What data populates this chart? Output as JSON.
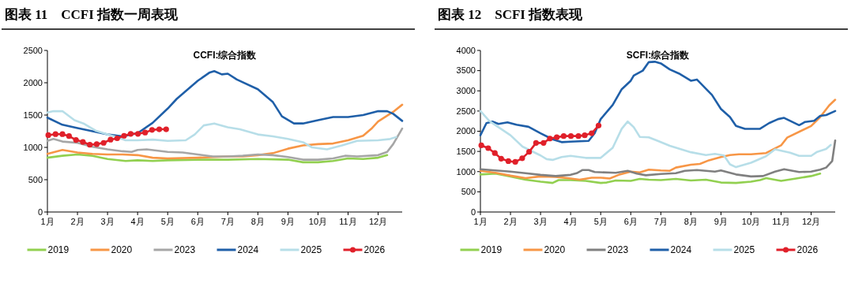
{
  "chart_data": [
    {
      "type": "line",
      "title": "图表 11　CCFI 指数一周表现",
      "subtitle": "CCFI:综合指数",
      "xlim": [
        1,
        12.8
      ],
      "xticks": [
        {
          "value": 1,
          "label": "1月"
        },
        {
          "value": 2,
          "label": "2月"
        },
        {
          "value": 3,
          "label": "3月"
        },
        {
          "value": 4,
          "label": "4月"
        },
        {
          "value": 5,
          "label": "5月"
        },
        {
          "value": 6,
          "label": "6月"
        },
        {
          "value": 7,
          "label": "7月"
        },
        {
          "value": 8,
          "label": "8月"
        },
        {
          "value": 9,
          "label": "9月"
        },
        {
          "value": 10,
          "label": "10月"
        },
        {
          "value": 11,
          "label": "11月"
        },
        {
          "value": 12,
          "label": "12月"
        }
      ],
      "ylim": [
        0,
        2500
      ],
      "yticks": [
        0,
        500,
        1000,
        1500,
        2000,
        2500
      ],
      "grid": false,
      "legend": "bottom",
      "series": [
        {
          "name": "2019",
          "color": "#92d050",
          "x": [
            1,
            1.5,
            2,
            2.5,
            3,
            3.6,
            4,
            4.5,
            5,
            6,
            7,
            8,
            9,
            9.5,
            10,
            10.5,
            11,
            11.5,
            12,
            12.3
          ],
          "values": [
            840,
            870,
            890,
            870,
            820,
            790,
            800,
            790,
            800,
            810,
            810,
            820,
            810,
            770,
            770,
            790,
            830,
            820,
            840,
            880
          ]
        },
        {
          "name": "2020",
          "color": "#f79646",
          "x": [
            1,
            1.5,
            2,
            2.5,
            3,
            3.5,
            4,
            4.5,
            5,
            6,
            7,
            7.5,
            8,
            8.5,
            9,
            9.5,
            10,
            10.5,
            11,
            11.5,
            11.8,
            12,
            12.5,
            12.8
          ],
          "values": [
            900,
            960,
            920,
            900,
            890,
            890,
            880,
            840,
            830,
            840,
            860,
            860,
            880,
            910,
            980,
            1030,
            1050,
            1060,
            1110,
            1180,
            1300,
            1400,
            1550,
            1660
          ]
        },
        {
          "name": "2023",
          "color": "#a6a6a6",
          "x": [
            1,
            1.2,
            1.5,
            2,
            2.5,
            3,
            3.5,
            3.8,
            4,
            4.3,
            5,
            5.5,
            6,
            6.5,
            7,
            7.5,
            8,
            8.5,
            9,
            9.5,
            10,
            10.5,
            10.9,
            11.3,
            12,
            12.3,
            12.5,
            12.8
          ],
          "values": [
            1100,
            1130,
            1090,
            1070,
            1010,
            970,
            940,
            930,
            960,
            970,
            930,
            920,
            890,
            860,
            860,
            870,
            890,
            880,
            850,
            810,
            810,
            830,
            870,
            860,
            880,
            930,
            1050,
            1290
          ]
        },
        {
          "name": "2024",
          "color": "#1f5fa8",
          "x": [
            1,
            1.5,
            2,
            2.5,
            3,
            3.5,
            4,
            4.5,
            5,
            5.3,
            6,
            6.4,
            6.55,
            6.8,
            7,
            7.3,
            8,
            8.5,
            8.8,
            9.2,
            9.5,
            10,
            10.5,
            10.8,
            11,
            11.5,
            12,
            12.3,
            12.5,
            12.8
          ],
          "values": [
            1460,
            1350,
            1300,
            1250,
            1200,
            1170,
            1220,
            1380,
            1600,
            1750,
            2030,
            2160,
            2180,
            2130,
            2140,
            2050,
            1900,
            1700,
            1480,
            1370,
            1370,
            1420,
            1470,
            1470,
            1470,
            1500,
            1560,
            1560,
            1520,
            1410
          ]
        },
        {
          "name": "2025",
          "color": "#b7dee8",
          "x": [
            1,
            1.2,
            1.5,
            1.9,
            2.2,
            2.6,
            3,
            3.3,
            3.6,
            4,
            4.5,
            5,
            5.6,
            5.9,
            6.2,
            6.55,
            7,
            7.4,
            8,
            8.5,
            9,
            9.5,
            9.8,
            10.3,
            10.8,
            11.3,
            12,
            12.4,
            12.6
          ],
          "values": [
            1540,
            1560,
            1560,
            1420,
            1370,
            1260,
            1200,
            1160,
            1110,
            1110,
            1120,
            1100,
            1110,
            1200,
            1340,
            1370,
            1310,
            1280,
            1200,
            1170,
            1130,
            1080,
            1000,
            970,
            1030,
            1100,
            1110,
            1130,
            1160
          ]
        },
        {
          "name": "2026",
          "color": "#e0202a",
          "marker": "circle",
          "x": [
            1.03,
            1.27,
            1.5,
            1.72,
            1.95,
            2.18,
            2.41,
            2.64,
            2.87,
            3.1,
            3.32,
            3.55,
            3.77,
            4.01,
            4.25,
            4.48,
            4.72,
            4.95
          ],
          "values": [
            1190,
            1205,
            1205,
            1175,
            1115,
            1085,
            1040,
            1050,
            1070,
            1120,
            1140,
            1180,
            1210,
            1210,
            1230,
            1270,
            1280,
            1280
          ]
        }
      ]
    },
    {
      "type": "line",
      "title": "图表 12　SCFI 指数表现",
      "subtitle": "SCFI:综合指数",
      "xlim": [
        1,
        12.8
      ],
      "xticks": [
        {
          "value": 1,
          "label": "1月"
        },
        {
          "value": 2,
          "label": "2月"
        },
        {
          "value": 3,
          "label": "3月"
        },
        {
          "value": 4,
          "label": "4月"
        },
        {
          "value": 5,
          "label": "5月"
        },
        {
          "value": 6,
          "label": "6月"
        },
        {
          "value": 7,
          "label": "7月"
        },
        {
          "value": 8,
          "label": "8月"
        },
        {
          "value": 9,
          "label": "9月"
        },
        {
          "value": 10,
          "label": "10月"
        },
        {
          "value": 11,
          "label": "11月"
        },
        {
          "value": 12,
          "label": "12月"
        }
      ],
      "ylim": [
        0,
        4000
      ],
      "yticks": [
        0,
        500,
        1000,
        1500,
        2000,
        2500,
        3000,
        3500,
        4000
      ],
      "grid": false,
      "legend": "bottom",
      "series": [
        {
          "name": "2019",
          "color": "#92d050",
          "x": [
            1,
            1.5,
            2,
            2.5,
            3,
            3.4,
            3.6,
            4,
            4.5,
            5,
            5.2,
            5.5,
            6,
            6.3,
            6.6,
            7,
            7.5,
            8,
            8.5,
            9,
            9.5,
            10,
            10.3,
            10.5,
            11,
            11.5,
            12,
            12.3
          ],
          "values": [
            930,
            950,
            880,
            800,
            750,
            720,
            790,
            790,
            770,
            720,
            730,
            780,
            770,
            820,
            800,
            790,
            820,
            780,
            800,
            730,
            720,
            750,
            790,
            840,
            770,
            830,
            890,
            950
          ]
        },
        {
          "name": "2020",
          "color": "#f79646",
          "x": [
            1,
            1.5,
            2,
            2.5,
            3,
            3.5,
            4,
            4.3,
            4.7,
            5,
            5.3,
            5.6,
            6,
            6.3,
            6.6,
            7,
            7.3,
            7.5,
            8,
            8.3,
            8.6,
            9,
            9.3,
            9.6,
            10,
            10.5,
            11,
            11.2,
            12,
            12.3,
            12.6,
            12.8
          ],
          "values": [
            1020,
            970,
            900,
            840,
            880,
            870,
            830,
            800,
            850,
            850,
            830,
            920,
            1000,
            980,
            1050,
            1030,
            1020,
            1100,
            1170,
            1190,
            1280,
            1360,
            1410,
            1430,
            1430,
            1460,
            1650,
            1840,
            2130,
            2350,
            2640,
            2780
          ]
        },
        {
          "name": "2023",
          "color": "#808080",
          "x": [
            1,
            1.5,
            2,
            2.5,
            3,
            3.5,
            4,
            4.2,
            4.4,
            4.6,
            4.8,
            5.5,
            5.9,
            6.2,
            6.5,
            7,
            7.5,
            7.8,
            8.2,
            8.8,
            9,
            9.5,
            10,
            10.4,
            10.8,
            11.1,
            11.6,
            12,
            12.3,
            12.5,
            12.7,
            12.8
          ],
          "values": [
            1060,
            1030,
            1000,
            960,
            920,
            890,
            920,
            960,
            1040,
            1040,
            990,
            970,
            1020,
            950,
            910,
            940,
            960,
            1020,
            1040,
            1000,
            1030,
            930,
            880,
            890,
            1000,
            1060,
            990,
            1000,
            1050,
            1100,
            1260,
            1770
          ]
        },
        {
          "name": "2024",
          "color": "#1f5fa8",
          "x": [
            1,
            1.2,
            1.4,
            1.6,
            1.9,
            2.2,
            2.6,
            3,
            3.4,
            3.7,
            4,
            4.6,
            4.8,
            5,
            5.4,
            5.7,
            6,
            6.1,
            6.4,
            6.6,
            6.8,
            7,
            7.3,
            7.6,
            8,
            8.2,
            8.5,
            8.7,
            9,
            9.3,
            9.5,
            9.8,
            10.3,
            10.6,
            10.9,
            11.1,
            11.6,
            11.8,
            12.1,
            12.3,
            12.5,
            12.8
          ],
          "values": [
            1900,
            2200,
            2240,
            2180,
            2220,
            2160,
            2110,
            1950,
            1800,
            1730,
            1740,
            1760,
            1950,
            2300,
            2650,
            3040,
            3250,
            3380,
            3500,
            3710,
            3720,
            3680,
            3530,
            3430,
            3250,
            3280,
            3050,
            2900,
            2550,
            2350,
            2130,
            2060,
            2060,
            2200,
            2300,
            2330,
            2150,
            2230,
            2260,
            2380,
            2400,
            2500
          ]
        },
        {
          "name": "2025",
          "color": "#b7dee8",
          "x": [
            1,
            1.3,
            1.6,
            2,
            2.4,
            3,
            3.2,
            3.4,
            3.7,
            4,
            4.5,
            5,
            5.4,
            5.7,
            5.9,
            6.1,
            6.3,
            6.6,
            6.9,
            7.3,
            8,
            8.5,
            8.8,
            9.1,
            9.3,
            9.5,
            10,
            10.5,
            10.8,
            11.3,
            11.6,
            12,
            12.2,
            12.5,
            12.65
          ],
          "values": [
            2500,
            2250,
            2100,
            1900,
            1620,
            1400,
            1310,
            1290,
            1360,
            1390,
            1340,
            1340,
            1590,
            2060,
            2240,
            2100,
            1860,
            1850,
            1760,
            1640,
            1480,
            1410,
            1440,
            1400,
            1180,
            1110,
            1220,
            1380,
            1550,
            1470,
            1390,
            1390,
            1490,
            1560,
            1660
          ]
        },
        {
          "name": "2026",
          "color": "#e0202a",
          "marker": "circle",
          "x": [
            1.03,
            1.26,
            1.48,
            1.69,
            1.93,
            2.16,
            2.39,
            2.62,
            2.85,
            3.1,
            3.31,
            3.54,
            3.77,
            4.01,
            4.26,
            4.47,
            4.7,
            4.93
          ],
          "values": [
            1650,
            1580,
            1460,
            1320,
            1260,
            1240,
            1330,
            1490,
            1710,
            1710,
            1820,
            1850,
            1880,
            1880,
            1880,
            1900,
            1950,
            2140
          ]
        }
      ]
    }
  ]
}
